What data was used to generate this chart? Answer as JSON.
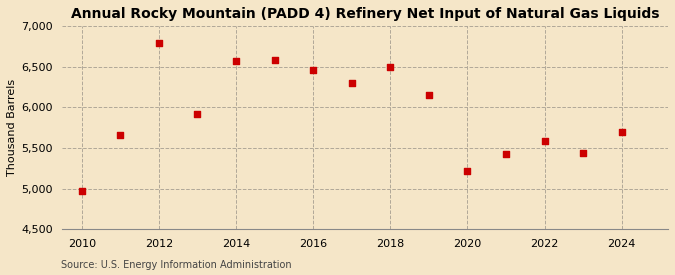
{
  "title": "Annual Rocky Mountain (PADD 4) Refinery Net Input of Natural Gas Liquids",
  "ylabel": "Thousand Barrels",
  "source": "Source: U.S. Energy Information Administration",
  "background_color": "#f5e6c8",
  "plot_bg_color": "#f5e6c8",
  "years": [
    2010,
    2011,
    2012,
    2013,
    2014,
    2015,
    2016,
    2017,
    2018,
    2019,
    2020,
    2021,
    2022,
    2023,
    2024
  ],
  "values": [
    4970,
    5660,
    6800,
    5920,
    6570,
    6590,
    6460,
    6300,
    6500,
    6150,
    5220,
    5420,
    5590,
    5440,
    5700
  ],
  "marker_color": "#cc0000",
  "marker_size": 20,
  "ylim": [
    4500,
    7000
  ],
  "yticks": [
    4500,
    5000,
    5500,
    6000,
    6500,
    7000
  ],
  "ytick_labels": [
    "4,500",
    "5,000",
    "5,500",
    "6,000",
    "6,500",
    "7,000"
  ],
  "xlim": [
    2009.5,
    2025.2
  ],
  "xticks": [
    2010,
    2012,
    2014,
    2016,
    2018,
    2020,
    2022,
    2024
  ],
  "grid_color": "#b0a898",
  "title_fontsize": 10,
  "label_fontsize": 8,
  "tick_fontsize": 8,
  "source_fontsize": 7
}
